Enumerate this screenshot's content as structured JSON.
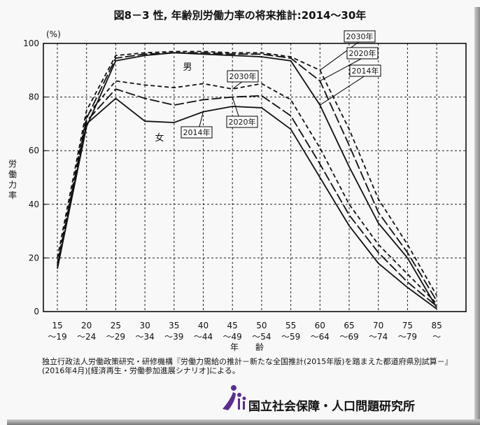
{
  "chart_data": {
    "type": "line",
    "title": "図8－3 性, 年齢別労働力率の将来推計:2014～30年",
    "ylabel": "労働力率",
    "yunit": "(%)",
    "xlabel": "年　　齢",
    "ylim": [
      0,
      100
    ],
    "yticks": [
      0,
      20,
      40,
      60,
      80,
      100
    ],
    "grid": true,
    "categories": [
      "15\n～19",
      "20\n～24",
      "25\n～29",
      "30\n～34",
      "35\n～39",
      "40\n～44",
      "45\n～49",
      "50\n～54",
      "55\n～59",
      "60\n～64",
      "65\n～69",
      "70\n～74",
      "75\n～79",
      "85\n～"
    ],
    "group_labels": [
      "男",
      "女"
    ],
    "series": [
      {
        "name": "2014年",
        "group": "男",
        "style": "solid",
        "values": [
          16,
          69,
          93.5,
          95.5,
          96.5,
          96,
          95.5,
          95,
          93.5,
          77,
          54,
          33,
          20,
          1.5
        ]
      },
      {
        "name": "2020年",
        "group": "男",
        "style": "longdash",
        "values": [
          17,
          72,
          94.5,
          96,
          96.5,
          96.5,
          96,
          96,
          94.5,
          86,
          62,
          37,
          22,
          4
        ]
      },
      {
        "name": "2030年",
        "group": "男",
        "style": "shortdash",
        "values": [
          20,
          75,
          95.5,
          96.5,
          97,
          97,
          96.5,
          96.5,
          95,
          90,
          68,
          42,
          25,
          6
        ]
      },
      {
        "name": "2014年",
        "group": "女",
        "style": "solid",
        "values": [
          16,
          70,
          79.5,
          71,
          70.5,
          74.5,
          76.5,
          76,
          68,
          50,
          32,
          18,
          9,
          1
        ]
      },
      {
        "name": "2020年",
        "group": "女",
        "style": "longdash",
        "values": [
          17,
          71,
          83,
          79.5,
          77,
          79,
          80,
          80.5,
          73,
          55,
          36,
          22,
          11,
          2
        ]
      },
      {
        "name": "2030年",
        "group": "女",
        "style": "shortdash",
        "values": [
          18,
          73,
          86,
          84.5,
          83.5,
          85,
          83,
          85,
          79,
          61,
          40,
          25,
          14,
          3
        ]
      }
    ]
  },
  "source": "独立行政法人労働政策研究・研修機構『労働力需給の推計－新たな全国推計(2015年版)を踏まえた都道府県別試算－』(2016年4月)[経済再生・労働参加進展シナリオ]による。",
  "organization": "国立社会保障・人口問題研究所",
  "colors": {
    "line": "#111111",
    "logo": "#5b2d90"
  }
}
